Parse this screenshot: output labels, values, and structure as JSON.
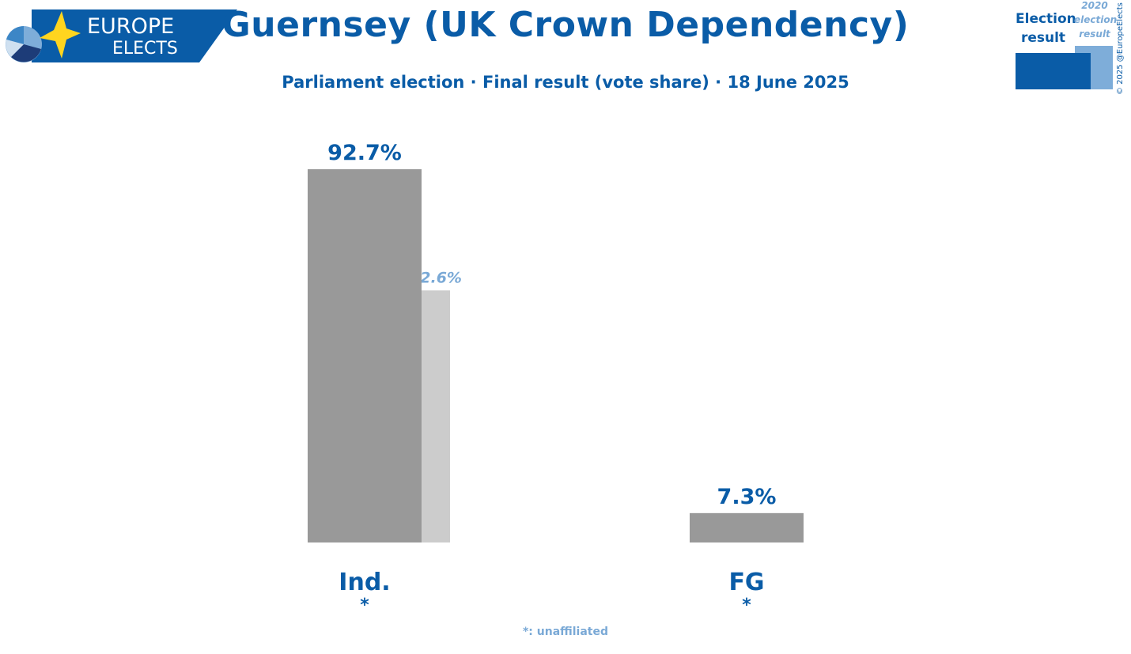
{
  "logo": {
    "line1": "EUROPE",
    "line2": "ELECTS"
  },
  "header": {
    "title": "Guernsey (UK Crown Dependency)",
    "subtitle": "Parliament election · Final result (vote share) · 18 June 2025"
  },
  "legend": {
    "current_label_line1": "Election",
    "current_label_line2": "result",
    "previous_label_line1": "2020",
    "previous_label_line2": "election",
    "previous_label_line3": "result"
  },
  "copyright": "© 2025 @EuropeElects",
  "footnote": "*: unaffiliated",
  "colors": {
    "accent": "#0a5ca7",
    "light_accent": "#7aa9d6",
    "current_bar": "#999999",
    "previous_bar": "#cccccc"
  },
  "chart_data": {
    "type": "bar",
    "categories": [
      "Ind.",
      "FG"
    ],
    "markers": [
      "*",
      "*"
    ],
    "series": [
      {
        "values": [
          92.7,
          7.3
        ],
        "labels": [
          "92.7%",
          "7.3%"
        ]
      },
      {
        "values": [
          62.6,
          null
        ],
        "labels": [
          "62.6%",
          ""
        ]
      }
    ],
    "ylim": [
      0,
      92.7
    ],
    "grid": false
  }
}
